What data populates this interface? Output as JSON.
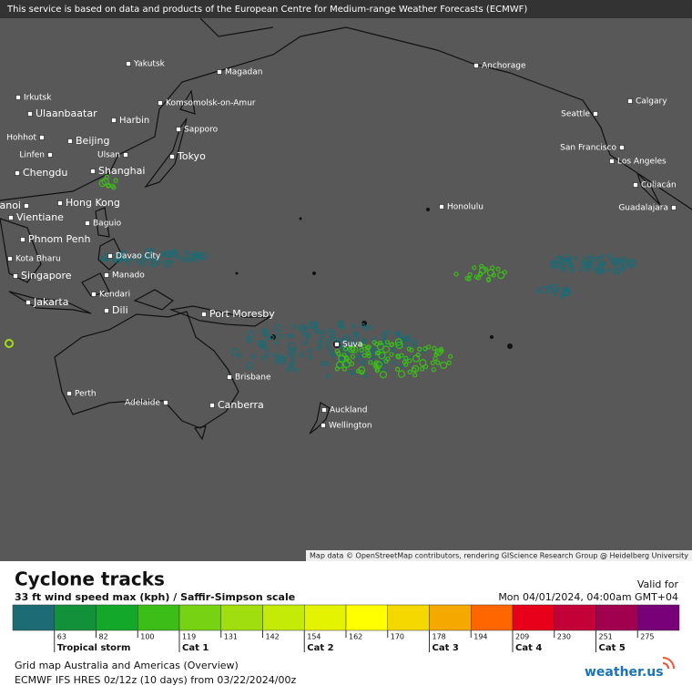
{
  "header": {
    "notice": "This service is based on data and products of the European Centre for Medium-range Weather Forecasts (ECMWF)"
  },
  "map": {
    "attribution": "Map data © OpenStreetMap contributors, rendering GIScience Research Group @ Heidelberg University",
    "cities": [
      "Yakutsk",
      "Magadan",
      "Anchorage",
      "Irkutsk",
      "Ulaanbaatar",
      "Harbin",
      "Komsomolsk-on-Amur",
      "Calgary",
      "Seattle",
      "Sapporo",
      "Hohhot",
      "Beijing",
      "San Francisco",
      "Linfen",
      "Ulsan",
      "Tokyo",
      "Los Angeles",
      "Chengdu",
      "Shanghai",
      "Culiacán",
      "Hanoi",
      "Hong Kong",
      "Honolulu",
      "Guadalajara",
      "Vientiane",
      "Baguio",
      "Phnom Penh",
      "Davao City",
      "Kota Bharu",
      "Manado",
      "Singapore",
      "Kendari",
      "Jakarta",
      "Dili",
      "Port Moresby",
      "Suva",
      "Perth",
      "Adelaide",
      "Canberra",
      "Brisbane",
      "Auckland",
      "Wellington"
    ]
  },
  "legend": {
    "title": "Cyclone tracks",
    "subtitle": "33 ft wind speed max (kph) / Saffir-Simpson scale",
    "valid_label": "Valid for",
    "valid_time": "Mon 04/01/2024, 04:00am GMT+04",
    "colors": [
      "#1d6b74",
      "#12913a",
      "#14a82a",
      "#3cbd18",
      "#78d214",
      "#a0de10",
      "#c4ea08",
      "#e4f400",
      "#ffff00",
      "#f4d800",
      "#f5a800",
      "#ff6600",
      "#e8001a",
      "#c40038",
      "#a0004e",
      "#780078"
    ],
    "ticks": [
      "63",
      "82",
      "100",
      "119",
      "131",
      "142",
      "154",
      "162",
      "170",
      "178",
      "194",
      "209",
      "230",
      "251",
      "275"
    ],
    "categories": [
      "Tropical storm",
      "Cat 1",
      "Cat 2",
      "Cat 3",
      "Cat 4",
      "Cat 5"
    ]
  },
  "footer": {
    "line1": "Grid map Australia and Americas (Overview)",
    "line2": "ECMWF IFS HRES 0z/12z (10 days) from  03/22/2024/00z",
    "logo": "weather.us"
  }
}
